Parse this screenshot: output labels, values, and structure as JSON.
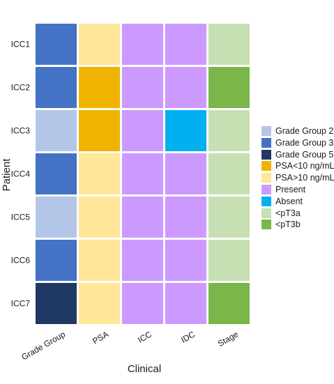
{
  "chart_data": {
    "type": "heatmap",
    "xlabel": "Clinical",
    "ylabel": "Patient",
    "columns": [
      "Grade Group",
      "PSA",
      "ICC",
      "IDC",
      "Stage"
    ],
    "rows": [
      "ICC1",
      "ICC2",
      "ICC3",
      "ICC4",
      "ICC5",
      "ICC6",
      "ICC7"
    ],
    "cells": [
      [
        "Grade Group 3",
        "PSA>10 ng/mL",
        "Present",
        "Present",
        "<pT3a"
      ],
      [
        "Grade Group 3",
        "PSA<10 ng/mL",
        "Present",
        "Present",
        "<pT3b"
      ],
      [
        "Grade Group 2",
        "PSA<10 ng/mL",
        "Present",
        "Absent",
        "<pT3a"
      ],
      [
        "Grade Group 3",
        "PSA>10 ng/mL",
        "Present",
        "Present",
        "<pT3a"
      ],
      [
        "Grade Group 2",
        "PSA>10 ng/mL",
        "Present",
        "Present",
        "<pT3a"
      ],
      [
        "Grade Group 3",
        "PSA>10 ng/mL",
        "Present",
        "Present",
        "<pT3a"
      ],
      [
        "Grade Group 5",
        "PSA>10 ng/mL",
        "Present",
        "Present",
        "<pT3b"
      ]
    ],
    "legend": [
      {
        "label": "Grade Group 2",
        "color": "#b4c6e7"
      },
      {
        "label": "Grade Group 3",
        "color": "#4472c4"
      },
      {
        "label": "Grade Group 5",
        "color": "#1f3864"
      },
      {
        "label": "PSA<10 ng/mL",
        "color": "#f0b400"
      },
      {
        "label": "PSA>10 ng/mL",
        "color": "#ffe699"
      },
      {
        "label": "Present",
        "color": "#cc99ff"
      },
      {
        "label": "Absent",
        "color": "#00b0f0"
      },
      {
        "label": "<pT3a",
        "color": "#c6e0b4"
      },
      {
        "label": "<pT3b",
        "color": "#7ab648"
      }
    ],
    "legend_position": "right",
    "grid": false
  }
}
